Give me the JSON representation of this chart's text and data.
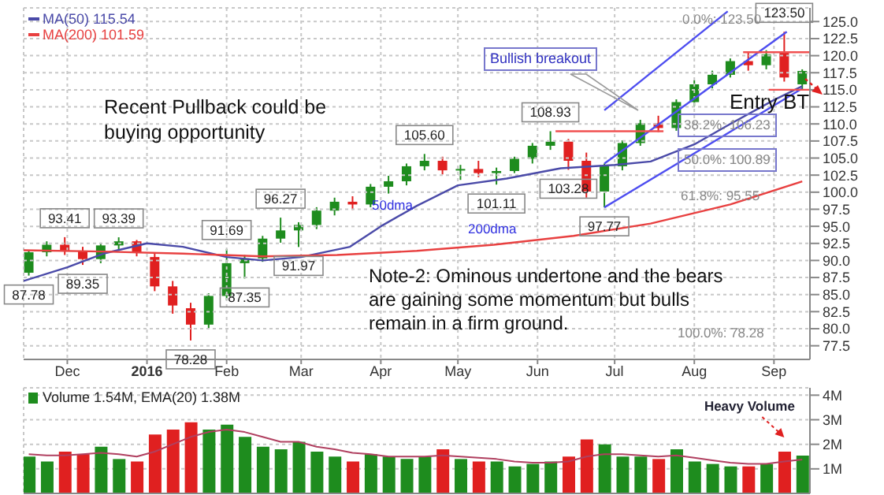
{
  "chart_data": [
    {
      "type": "candlestick",
      "legend": "top left",
      "grid": true,
      "x": [
        "2015-11-16",
        "2015-11-23",
        "2015-11-30",
        "2015-12-07",
        "2015-12-14",
        "2015-12-21",
        "2015-12-28",
        "2016-01-04",
        "2016-01-11",
        "2016-01-18",
        "2016-01-25",
        "2016-02-01",
        "2016-02-08",
        "2016-02-15",
        "2016-02-22",
        "2016-02-29",
        "2016-03-07",
        "2016-03-14",
        "2016-03-21",
        "2016-03-28",
        "2016-04-04",
        "2016-04-11",
        "2016-04-18",
        "2016-04-25",
        "2016-05-02",
        "2016-05-09",
        "2016-05-16",
        "2016-05-23",
        "2016-05-30",
        "2016-06-06",
        "2016-06-13",
        "2016-06-20",
        "2016-06-27",
        "2016-07-04",
        "2016-07-11",
        "2016-07-18",
        "2016-07-25",
        "2016-08-01",
        "2016-08-08",
        "2016-08-15",
        "2016-08-22",
        "2016-08-29",
        "2016-09-05",
        "2016-09-12"
      ],
      "ohlc": [
        [
          88.2,
          91.5,
          87.78,
          91.2
        ],
        [
          91.2,
          92.8,
          90.6,
          92.3
        ],
        [
          92.3,
          93.41,
          90.8,
          91.4
        ],
        [
          91.4,
          92,
          89.35,
          90.2
        ],
        [
          90.2,
          92.6,
          89.6,
          92.2
        ],
        [
          92.2,
          93.39,
          91.4,
          92.8
        ],
        [
          92.8,
          93,
          90.6,
          91.1
        ],
        [
          90.5,
          91,
          85.5,
          86.2
        ],
        [
          86.2,
          87,
          82.2,
          83.4
        ],
        [
          83,
          83.8,
          78.28,
          80.6
        ],
        [
          80.6,
          85.2,
          80,
          84.8
        ],
        [
          84.8,
          91.69,
          84.2,
          89.6
        ],
        [
          89.6,
          90.8,
          87.35,
          90.3
        ],
        [
          90.3,
          93.6,
          89.8,
          93.2
        ],
        [
          93.2,
          96.27,
          92.6,
          94.4
        ],
        [
          94.4,
          95.6,
          91.97,
          95.2
        ],
        [
          95.2,
          97.8,
          94.6,
          97.3
        ],
        [
          97.3,
          99.2,
          96.6,
          98.6
        ],
        [
          98.6,
          99.4,
          97.4,
          98.2
        ],
        [
          98.2,
          101.2,
          97.8,
          100.8
        ],
        [
          100.8,
          102.4,
          99.8,
          101.6
        ],
        [
          101.6,
          104.2,
          101,
          103.8
        ],
        [
          103.8,
          105.6,
          103.2,
          104.6
        ],
        [
          104.6,
          105.2,
          102.6,
          103.2
        ],
        [
          103.2,
          104,
          101.8,
          103.4
        ],
        [
          103.4,
          104.6,
          102.2,
          102.8
        ],
        [
          102.8,
          103.6,
          101.11,
          103.1
        ],
        [
          103.1,
          105.2,
          102.8,
          104.9
        ],
        [
          104.9,
          107.2,
          104.2,
          106.8
        ],
        [
          106.8,
          108.93,
          106.2,
          107.4
        ],
        [
          107.4,
          107.8,
          103.28,
          104.6
        ],
        [
          104.6,
          105.8,
          99.2,
          100.1
        ],
        [
          100.1,
          104.2,
          97.77,
          103.8
        ],
        [
          103.8,
          107.6,
          103.2,
          107.2
        ],
        [
          107.2,
          110.6,
          106.8,
          110.1
        ],
        [
          110.1,
          111.2,
          108.8,
          109.4
        ],
        [
          109.4,
          113.6,
          109,
          113.2
        ],
        [
          113.2,
          116.4,
          112.6,
          115.8
        ],
        [
          115.8,
          117.8,
          115.2,
          117.2
        ],
        [
          117.2,
          119.6,
          116.8,
          119.2
        ],
        [
          119.2,
          120.6,
          117.8,
          118.6
        ],
        [
          118.6,
          120.8,
          118,
          120.2
        ],
        [
          120.6,
          123.5,
          116.2,
          116.8
        ],
        [
          115.8,
          118,
          114.91,
          117.76
        ]
      ],
      "colors": [
        "#1e8c1e",
        "#1e8c1e",
        "#e02020",
        "#e02020",
        "#1e8c1e",
        "#1e8c1e",
        "#e02020",
        "#e02020",
        "#e02020",
        "#e02020",
        "#1e8c1e",
        "#1e8c1e",
        "#1e8c1e",
        "#1e8c1e",
        "#1e8c1e",
        "#1e8c1e",
        "#1e8c1e",
        "#1e8c1e",
        "#e02020",
        "#1e8c1e",
        "#1e8c1e",
        "#1e8c1e",
        "#1e8c1e",
        "#e02020",
        "#1e8c1e",
        "#e02020",
        "#1e8c1e",
        "#1e8c1e",
        "#1e8c1e",
        "#1e8c1e",
        "#e02020",
        "#e02020",
        "#1e8c1e",
        "#1e8c1e",
        "#1e8c1e",
        "#e02020",
        "#1e8c1e",
        "#1e8c1e",
        "#1e8c1e",
        "#1e8c1e",
        "#e02020",
        "#1e8c1e",
        "#e02020",
        "#1e8c1e"
      ],
      "series": [
        {
          "name": "MA(50) 115.54",
          "type": "line",
          "color": "#4a4aa8",
          "x": [
            "2015-11-14",
            "2015-12-01",
            "2015-12-15",
            "2016-01-01",
            "2016-01-15",
            "2016-02-01",
            "2016-02-15",
            "2016-03-01",
            "2016-03-20",
            "2016-04-01",
            "2016-04-15",
            "2016-05-01",
            "2016-05-20",
            "2016-06-10",
            "2016-07-01",
            "2016-07-15",
            "2016-08-01",
            "2016-08-15",
            "2016-09-01",
            "2016-09-12"
          ],
          "values": [
            87,
            89,
            91,
            92.5,
            92,
            90.5,
            90,
            90.5,
            92,
            95,
            98,
            101,
            102,
            103.5,
            104,
            104.5,
            107,
            110,
            113.5,
            115.54
          ]
        },
        {
          "name": "MA(200) 101.59",
          "type": "line",
          "color": "#e84040",
          "x": [
            "2015-11-14",
            "2015-12-15",
            "2016-01-15",
            "2016-02-15",
            "2016-03-15",
            "2016-04-15",
            "2016-05-15",
            "2016-06-15",
            "2016-07-15",
            "2016-08-15",
            "2016-09-12"
          ],
          "values": [
            91.5,
            91.3,
            91,
            90.6,
            90.8,
            91.4,
            92.3,
            93.6,
            95.4,
            98.2,
            101.59
          ]
        },
        {
          "type": "line",
          "color": "#4d4df0",
          "x": [
            "2016-06-27",
            "2016-09-12"
          ],
          "values": [
            97.77,
            115.2
          ]
        },
        {
          "type": "line",
          "color": "#4d4df0",
          "x": [
            "2016-06-27",
            "2016-09-06"
          ],
          "values": [
            104.2,
            123.5
          ]
        },
        {
          "type": "line",
          "color": "#4d4df0",
          "x": [
            "2016-06-27",
            "2016-08-14"
          ],
          "values": [
            112,
            126.5
          ]
        },
        {
          "type": "line",
          "color": "#f05050",
          "x": [
            "2016-06-08",
            "2016-07-20"
          ],
          "values": [
            108.93,
            108.93
          ]
        },
        {
          "type": "line",
          "color": "#f05050",
          "x": [
            "2016-08-20",
            "2016-09-15"
          ],
          "values": [
            120.5,
            120.5
          ]
        },
        {
          "type": "line",
          "color": "#f05050",
          "x": [
            "2016-08-30",
            "2016-09-15"
          ],
          "values": [
            115,
            115
          ]
        }
      ],
      "xlim": [
        "2015-11-14",
        "2016-09-15"
      ],
      "xticks": [
        {
          "value": "2015-12-01",
          "label": "Dec"
        },
        {
          "value": "2016-01-01",
          "label": "2016"
        },
        {
          "value": "2016-02-01",
          "label": "Feb"
        },
        {
          "value": "2016-03-01",
          "label": "Mar"
        },
        {
          "value": "2016-04-01",
          "label": "Apr"
        },
        {
          "value": "2016-05-01",
          "label": "May"
        },
        {
          "value": "2016-06-01",
          "label": "Jun"
        },
        {
          "value": "2016-07-01",
          "label": "Jul"
        },
        {
          "value": "2016-08-01",
          "label": "Aug"
        },
        {
          "value": "2016-09-01",
          "label": "Sep"
        }
      ],
      "ylim": [
        75.5,
        127
      ],
      "yticks": [
        77.5,
        {
          "value": 80,
          "label": "80.0"
        },
        82.5,
        {
          "value": 85,
          "label": "85.0"
        },
        87.5,
        {
          "value": 90,
          "label": "90.0"
        },
        92.5,
        {
          "value": 95,
          "label": "95.0"
        },
        97.5,
        {
          "value": 100,
          "label": "100.0"
        },
        102.5,
        {
          "value": 105,
          "label": "105.0"
        },
        107.5,
        {
          "value": 110,
          "label": "110.0"
        },
        112.5,
        {
          "value": 115,
          "label": "115.0"
        },
        117.5,
        {
          "value": 120,
          "label": "120.0"
        },
        122.5,
        {
          "value": 125,
          "label": "125.0"
        }
      ],
      "annotations": [
        "Recent Pullback could be buying opportunity",
        "Note-2: Ominous undertone and the bears are gaining some momentum but bulls remain in a firm ground.",
        "Bullish breakout",
        "Entry BT",
        "50dma",
        "200dma",
        {
          "text": "87.78",
          "x": "2015-11-16",
          "y": 87.78
        },
        {
          "text": "93.41",
          "x": "2015-11-30",
          "y": 93.41
        },
        {
          "text": "89.35",
          "x": "2015-12-07",
          "y": 89.35
        },
        {
          "text": "93.39",
          "x": "2015-12-21",
          "y": 93.39
        },
        {
          "text": "78.28",
          "x": "2016-01-18",
          "y": 78.28
        },
        {
          "text": "91.69",
          "x": "2016-02-01",
          "y": 91.69
        },
        {
          "text": "87.35",
          "x": "2016-02-08",
          "y": 87.35
        },
        {
          "text": "96.27",
          "x": "2016-02-22",
          "y": 96.27
        },
        {
          "text": "91.97",
          "x": "2016-02-29",
          "y": 91.97
        },
        {
          "text": "105.60",
          "x": "2016-04-18",
          "y": 105.6
        },
        {
          "text": "101.11",
          "x": "2016-05-16",
          "y": 101.11
        },
        {
          "text": "108.93",
          "x": "2016-06-06",
          "y": 108.93
        },
        {
          "text": "103.28",
          "x": "2016-06-13",
          "y": 103.28
        },
        {
          "text": "97.77",
          "x": "2016-06-27",
          "y": 97.77
        },
        {
          "text": "123.50",
          "x": "2016-09-05",
          "y": 123.5
        },
        "0.0%: 123.50",
        "38.2%: 106.23",
        "50.0%: 100.89",
        "61.8%: 95.55",
        "100.0%: 78.28"
      ]
    },
    {
      "type": "bar",
      "grid": true,
      "tick_labels": "y",
      "legend_title": "Volume 1.54M, EMA(20) 1.38M",
      "x": [
        "2015-11-16",
        "2015-11-23",
        "2015-11-30",
        "2015-12-07",
        "2015-12-14",
        "2015-12-21",
        "2015-12-28",
        "2016-01-04",
        "2016-01-11",
        "2016-01-18",
        "2016-01-25",
        "2016-02-01",
        "2016-02-08",
        "2016-02-15",
        "2016-02-22",
        "2016-02-29",
        "2016-03-07",
        "2016-03-14",
        "2016-03-21",
        "2016-03-28",
        "2016-04-04",
        "2016-04-11",
        "2016-04-18",
        "2016-04-25",
        "2016-05-02",
        "2016-05-09",
        "2016-05-16",
        "2016-05-23",
        "2016-05-30",
        "2016-06-06",
        "2016-06-13",
        "2016-06-20",
        "2016-06-27",
        "2016-07-04",
        "2016-07-11",
        "2016-07-18",
        "2016-07-25",
        "2016-08-01",
        "2016-08-08",
        "2016-08-15",
        "2016-08-22",
        "2016-08-29",
        "2016-09-05",
        "2016-09-12"
      ],
      "series": [
        {
          "type": "bar",
          "values": [
            1.5,
            1.3,
            1.7,
            1.6,
            1.9,
            1.4,
            1.3,
            2.4,
            2.6,
            2.9,
            2.6,
            2.8,
            2.3,
            1.9,
            1.8,
            2.1,
            1.7,
            1.5,
            1.3,
            1.6,
            1.5,
            1.4,
            1.5,
            1.8,
            1.4,
            1.3,
            1.3,
            1.1,
            1.2,
            1.3,
            1.5,
            2.2,
            2.0,
            1.5,
            1.5,
            1.4,
            1.8,
            1.3,
            1.2,
            1.1,
            1.1,
            1.2,
            1.7,
            1.54
          ],
          "colors": [
            "#1e8c1e",
            "#1e8c1e",
            "#e02020",
            "#e02020",
            "#1e8c1e",
            "#1e8c1e",
            "#e02020",
            "#e02020",
            "#e02020",
            "#e02020",
            "#1e8c1e",
            "#1e8c1e",
            "#1e8c1e",
            "#1e8c1e",
            "#1e8c1e",
            "#1e8c1e",
            "#1e8c1e",
            "#1e8c1e",
            "#e02020",
            "#1e8c1e",
            "#1e8c1e",
            "#1e8c1e",
            "#1e8c1e",
            "#e02020",
            "#1e8c1e",
            "#e02020",
            "#1e8c1e",
            "#1e8c1e",
            "#1e8c1e",
            "#1e8c1e",
            "#e02020",
            "#e02020",
            "#1e8c1e",
            "#1e8c1e",
            "#1e8c1e",
            "#e02020",
            "#1e8c1e",
            "#1e8c1e",
            "#1e8c1e",
            "#1e8c1e",
            "#e02020",
            "#1e8c1e",
            "#e02020",
            "#1e8c1e"
          ]
        },
        {
          "type": "line",
          "color": "#b04060",
          "values": [
            1.6,
            1.55,
            1.55,
            1.6,
            1.65,
            1.6,
            1.5,
            1.7,
            2.0,
            2.3,
            2.5,
            2.6,
            2.5,
            2.3,
            2.1,
            2.1,
            1.9,
            1.8,
            1.65,
            1.6,
            1.5,
            1.5,
            1.5,
            1.55,
            1.5,
            1.45,
            1.4,
            1.3,
            1.25,
            1.25,
            1.3,
            1.5,
            1.6,
            1.6,
            1.55,
            1.5,
            1.55,
            1.45,
            1.35,
            1.25,
            1.2,
            1.2,
            1.3,
            1.38
          ]
        }
      ],
      "xlim": [
        "2015-11-14",
        "2016-09-15"
      ],
      "xticks": [
        {
          "value": "2015-12-01",
          "label": null
        },
        {
          "value": "2016-01-01",
          "label": null
        },
        {
          "value": "2016-02-01",
          "label": null
        },
        {
          "value": "2016-03-01",
          "label": null
        },
        {
          "value": "2016-04-01",
          "label": null
        },
        {
          "value": "2016-05-01",
          "label": null
        },
        {
          "value": "2016-06-01",
          "label": null
        },
        {
          "value": "2016-07-01",
          "label": null
        },
        {
          "value": "2016-08-01",
          "label": null
        },
        {
          "value": "2016-09-01",
          "label": null
        }
      ],
      "ylim": [
        0,
        4.3
      ],
      "yticks": [
        {
          "value": 1,
          "label": "1M"
        },
        {
          "value": 2,
          "label": "2M"
        },
        {
          "value": 3,
          "label": "3M"
        },
        {
          "value": 4,
          "label": "4M"
        }
      ],
      "annotations": [
        {
          "text": "Heavy Volume",
          "x": "2016-09-05",
          "y": 1.7
        }
      ]
    }
  ]
}
